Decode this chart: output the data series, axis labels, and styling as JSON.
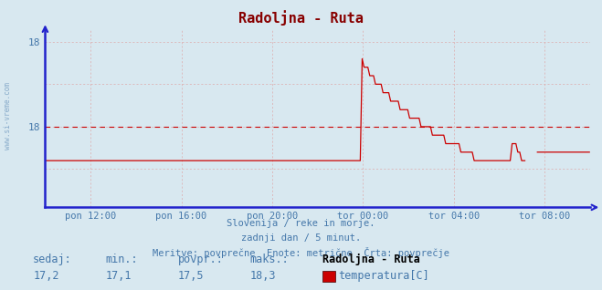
{
  "title": "Radoljna - Ruta",
  "title_color": "#880000",
  "bg_color": "#d8e8f0",
  "plot_bg_color": "#d8e8f0",
  "line_color": "#cc0000",
  "avg_line_color": "#cc0000",
  "avg_value": 17.5,
  "ymin": 16.55,
  "ymax": 18.65,
  "ytick_vals": [
    17.0,
    17.5,
    18.0,
    18.5
  ],
  "ytick_labels": [
    "",
    "18",
    "",
    "18"
  ],
  "grid_color": "#ddaaaa",
  "axis_color": "#2222cc",
  "text_color": "#4477aa",
  "n_points": 288,
  "t_total_min": 1440,
  "xtick_positions": [
    120,
    360,
    600,
    840,
    1080,
    1320
  ],
  "xtick_labels": [
    "pon 12:00",
    "pon 16:00",
    "pon 20:00",
    "tor 00:00",
    "tor 04:00",
    "tor 08:00"
  ],
  "footer_lines": [
    "Slovenija / reke in morje.",
    "zadnji dan / 5 minut.",
    "Meritve: povprečne  Enote: metrične  Črta: povprečje"
  ],
  "stats_labels": [
    "sedaj:",
    "min.:",
    "povpr.:",
    "maks.:"
  ],
  "stats_values": [
    "17,2",
    "17,1",
    "17,5",
    "18,3"
  ],
  "legend_name": "Radoljna - Ruta",
  "legend_series": "temperatura[C]",
  "legend_color": "#cc0000",
  "watermark": "www.si-vreme.com"
}
